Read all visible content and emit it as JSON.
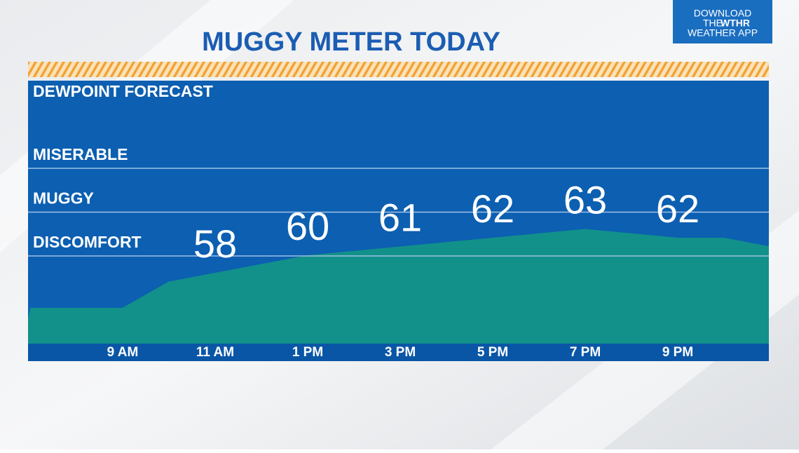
{
  "chart_data": {
    "type": "area",
    "title": "MUGGY METER TODAY",
    "subtitle": "DEWPOINT FORECAST",
    "logo": [
      "DOWNLOAD",
      "THE",
      "WTHR",
      "WEATHER APP"
    ],
    "categories": [
      null,
      null,
      "9 AM",
      null,
      "11 AM",
      null,
      "1 PM",
      null,
      "3 PM",
      null,
      "5 PM",
      null,
      "7 PM",
      null,
      "9 PM",
      null,
      null
    ],
    "values": [
      54,
      54,
      54,
      57,
      58,
      59,
      60,
      60.5,
      61,
      61.5,
      62,
      62.5,
      63,
      62.5,
      62,
      62,
      61
    ],
    "value_labels": [
      null,
      null,
      null,
      null,
      "58",
      null,
      "60",
      null,
      "61",
      null,
      "62",
      null,
      "63",
      null,
      "62",
      null,
      null
    ],
    "color": "#12918a",
    "ylim": [
      50,
      80
    ],
    "yticks": [
      {
        "value": 60,
        "label": "DISCOMFORT"
      },
      {
        "value": 65,
        "label": "MUGGY"
      },
      {
        "value": 70,
        "label": "MISERABLE"
      }
    ],
    "grid": true
  }
}
